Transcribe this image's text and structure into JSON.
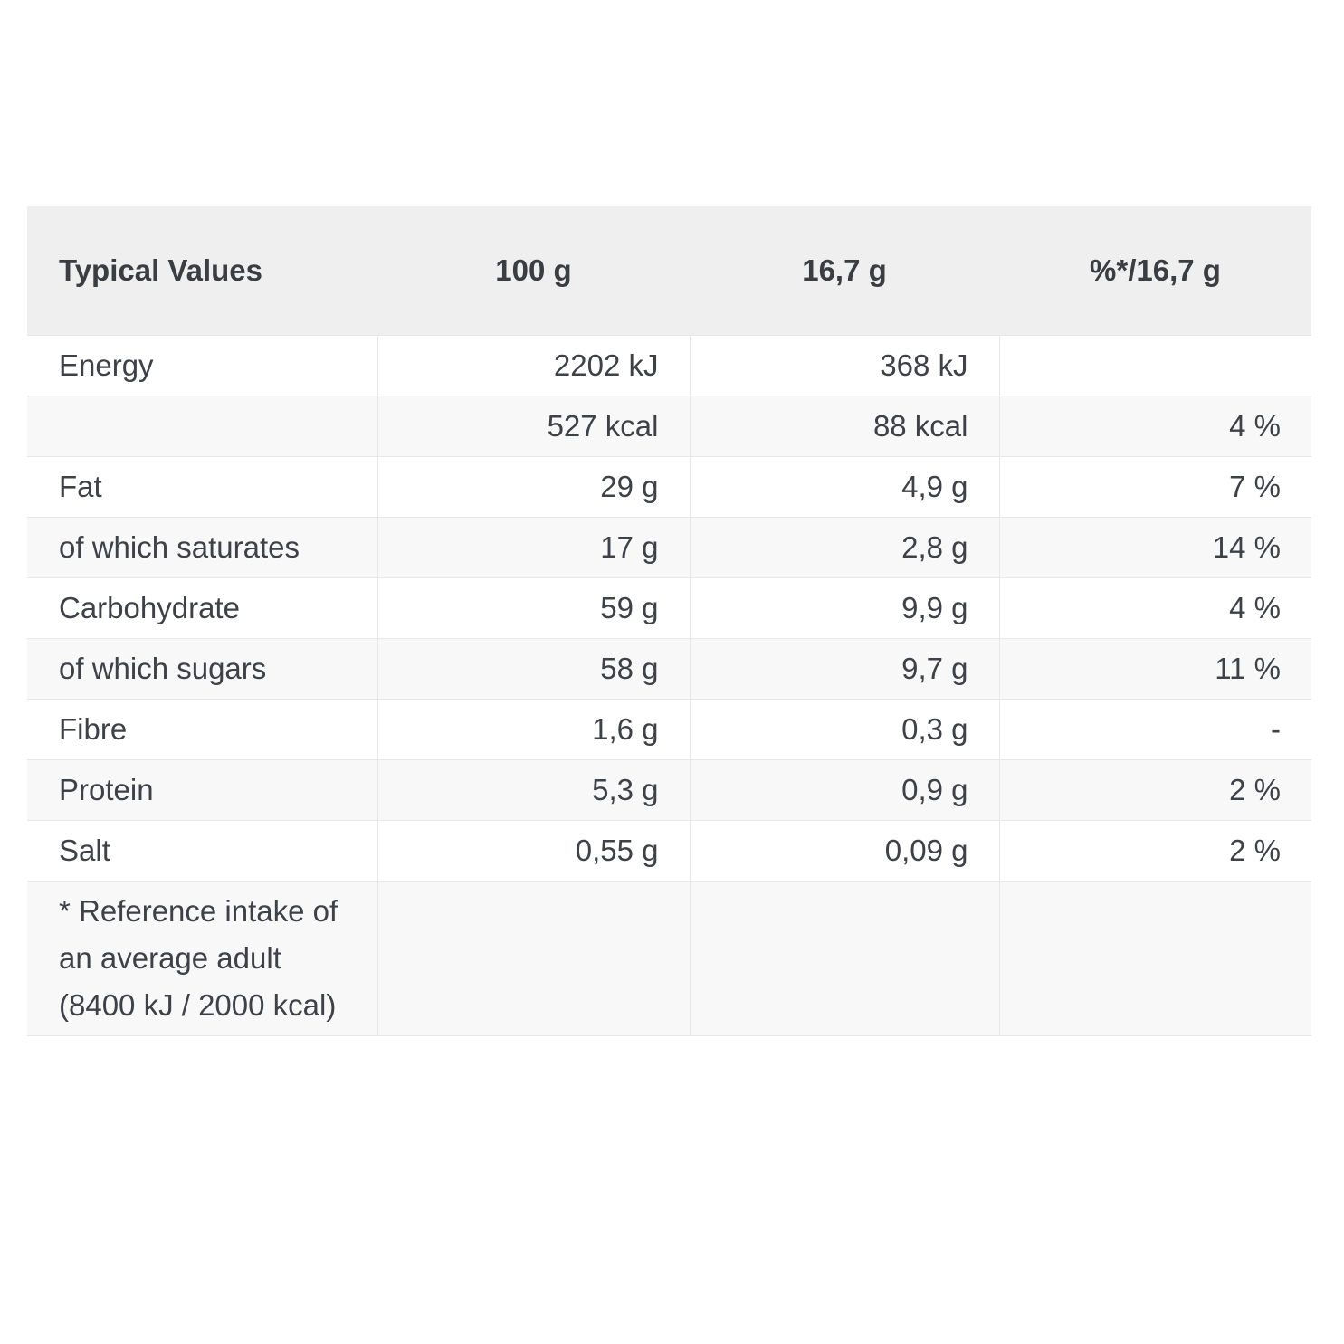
{
  "table": {
    "columns": [
      {
        "label": "Typical Values"
      },
      {
        "label": "100 g"
      },
      {
        "label": "16,7 g"
      },
      {
        "label": "%*/16,7 g"
      }
    ],
    "rows": [
      {
        "label": "Energy",
        "per_100g": "2202 kJ",
        "per_portion": "368 kJ",
        "reference_intake": ""
      },
      {
        "label": "",
        "per_100g": "527 kcal",
        "per_portion": "88 kcal",
        "reference_intake": "4 %"
      },
      {
        "label": "Fat",
        "per_100g": "29 g",
        "per_portion": "4,9 g",
        "reference_intake": "7 %"
      },
      {
        "label": "of which saturates",
        "per_100g": "17 g",
        "per_portion": "2,8 g",
        "reference_intake": "14 %"
      },
      {
        "label": "Carbohydrate",
        "per_100g": "59 g",
        "per_portion": "9,9 g",
        "reference_intake": "4 %"
      },
      {
        "label": "of which sugars",
        "per_100g": "58 g",
        "per_portion": "9,7 g",
        "reference_intake": "11 %"
      },
      {
        "label": "Fibre",
        "per_100g": "1,6 g",
        "per_portion": "0,3 g",
        "reference_intake": "-"
      },
      {
        "label": "Protein",
        "per_100g": "5,3 g",
        "per_portion": "0,9 g",
        "reference_intake": "2 %"
      },
      {
        "label": "Salt",
        "per_100g": "0,55 g",
        "per_portion": "0,09 g",
        "reference_intake": "2 %"
      },
      {
        "label": "* Reference intake of an average adult (8400 kJ / 2000 kcal)",
        "per_100g": "",
        "per_portion": "",
        "reference_intake": ""
      }
    ],
    "colors": {
      "header_bg": "#efefef",
      "row_alt_bg": "#f8f8f8",
      "border": "#e8e8e8",
      "text": "#3e4147"
    }
  }
}
